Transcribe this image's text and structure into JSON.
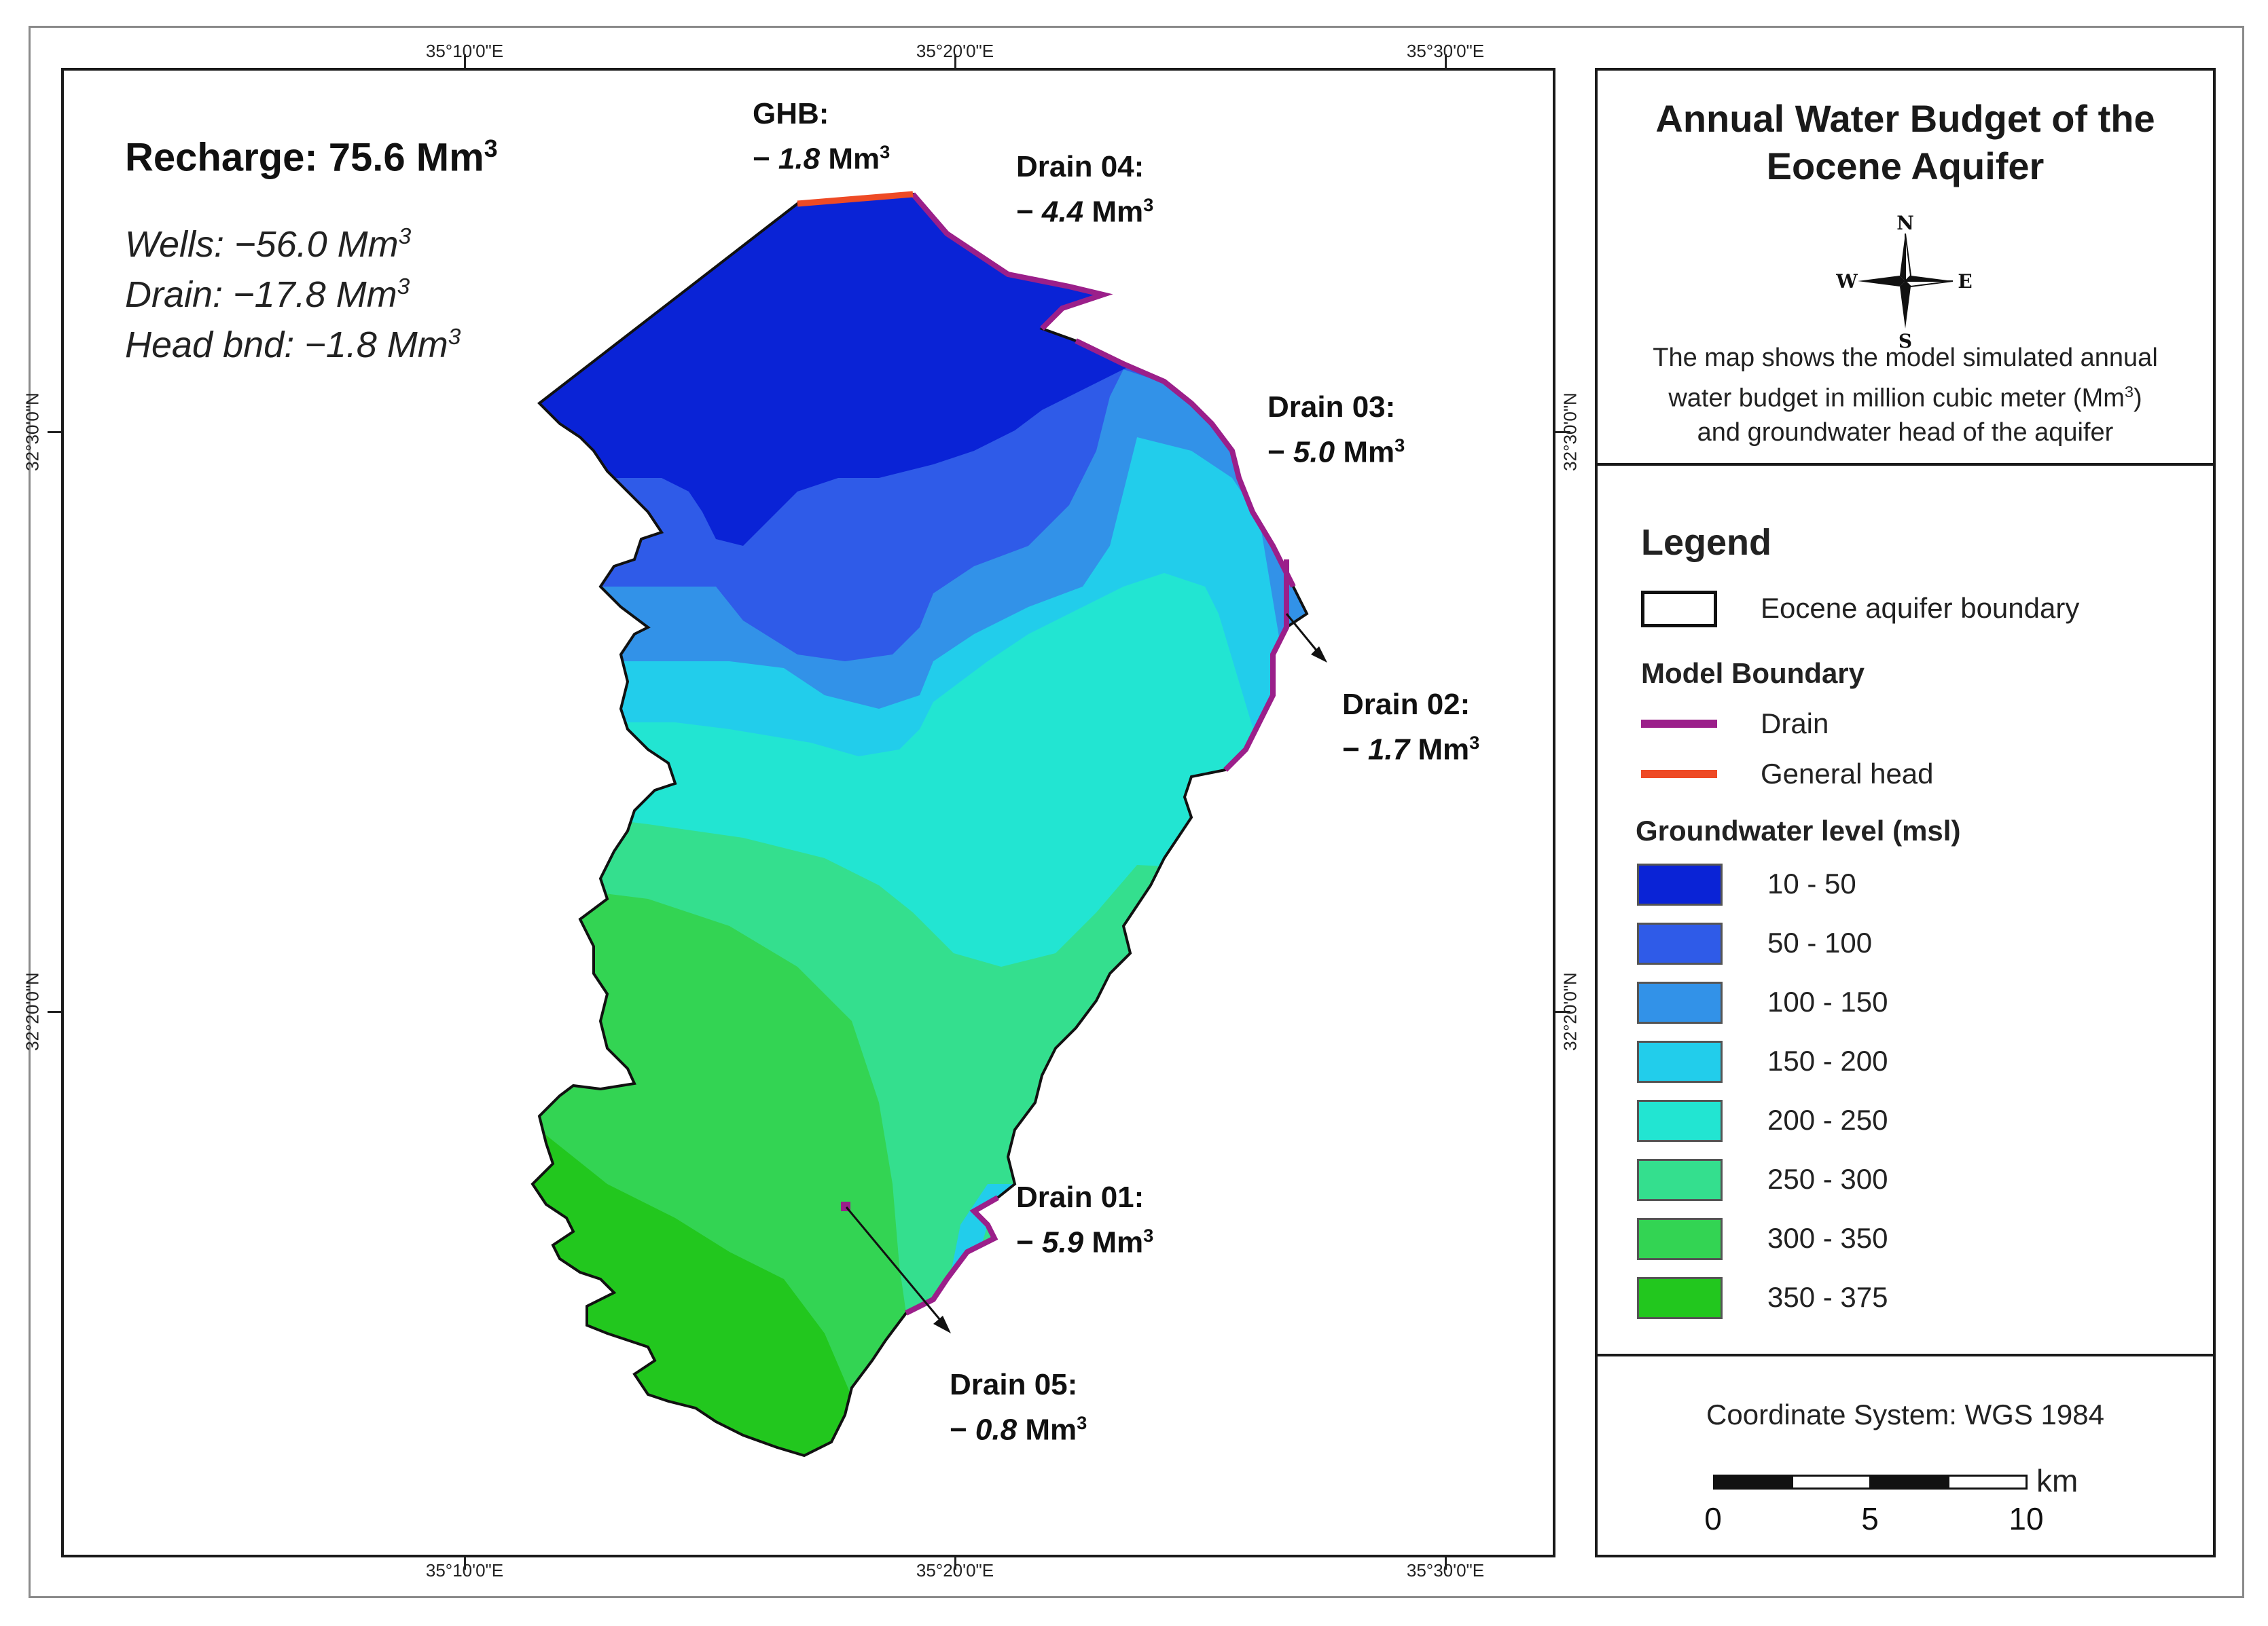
{
  "map": {
    "graticule": {
      "top": [
        "35°10'0\"E",
        "35°20'0\"E",
        "35°30'0\"E"
      ],
      "bottom": [
        "35°10'0\"E",
        "35°20'0\"E",
        "35°30'0\"E"
      ],
      "left": [
        "32°30'0\"N",
        "32°20'0\"N"
      ],
      "right": [
        "32°30'0\"N",
        "32°20'0\"N"
      ]
    },
    "budget": {
      "recharge_prefix": "Recharge: 75.6 Mm",
      "wells_prefix": "Wells: −56.0 Mm",
      "drain_prefix": "Drain: −17.8 Mm",
      "head_prefix": "Head bnd: −1.8 Mm",
      "exponent": "3"
    },
    "labels": {
      "ghb": {
        "name": "GHB:",
        "sign": "− ",
        "value": "1.8",
        "unit": " Mm",
        "exp": "3"
      },
      "drain04": {
        "name": "Drain 04:",
        "sign": "− ",
        "value": "4.4",
        "unit": " Mm",
        "exp": "3"
      },
      "drain03": {
        "name": "Drain 03:",
        "sign": "− ",
        "value": "5.0",
        "unit": " Mm",
        "exp": "3"
      },
      "drain02": {
        "name": "Drain 02:",
        "sign": "− ",
        "value": "1.7",
        "unit": " Mm",
        "exp": "3"
      },
      "drain01": {
        "name": "Drain 01:",
        "sign": "− ",
        "value": "5.9",
        "unit": " Mm",
        "exp": "3"
      },
      "drain05": {
        "name": "Drain 05:",
        "sign": "− ",
        "value": "0.8",
        "unit": " Mm",
        "exp": "3"
      }
    },
    "colors": {
      "drain_line": "#9b1f8a",
      "general_head_line": "#ee4a25"
    }
  },
  "panel": {
    "title": "Annual Water Budget of the Eocene Aquifer",
    "compass": {
      "n": "N",
      "s": "S",
      "e": "E",
      "w": "W"
    },
    "description_line1": "The map shows the model simulated annual",
    "description_line2_prefix": "water budget in million cubic meter (Mm",
    "description_line2_suffix": ")",
    "description_line3": "and groundwater head of the aquifer",
    "description_exp": "3",
    "legend": {
      "title": "Legend",
      "aquifer_boundary": "Eocene aquifer boundary",
      "model_boundary_title": "Model Boundary",
      "drain_label": "Drain",
      "general_head_label": "General head",
      "groundwater_title": "Groundwater level (msl)",
      "classes": [
        {
          "label": "10 - 50",
          "color": "#0a23d6"
        },
        {
          "label": "50 - 100",
          "color": "#2f5be8"
        },
        {
          "label": "100 - 150",
          "color": "#3292e8"
        },
        {
          "label": "150 - 200",
          "color": "#22cdeb"
        },
        {
          "label": "200 - 250",
          "color": "#22e5d2"
        },
        {
          "label": "250 - 300",
          "color": "#34df8e"
        },
        {
          "label": "300 - 350",
          "color": "#33d453"
        },
        {
          "label": "350 - 375",
          "color": "#22c71e"
        }
      ]
    },
    "coordinate_system": "Coordinate System: WGS 1984",
    "scale": {
      "labels": [
        "0",
        "5",
        "10"
      ],
      "unit": "km"
    }
  }
}
